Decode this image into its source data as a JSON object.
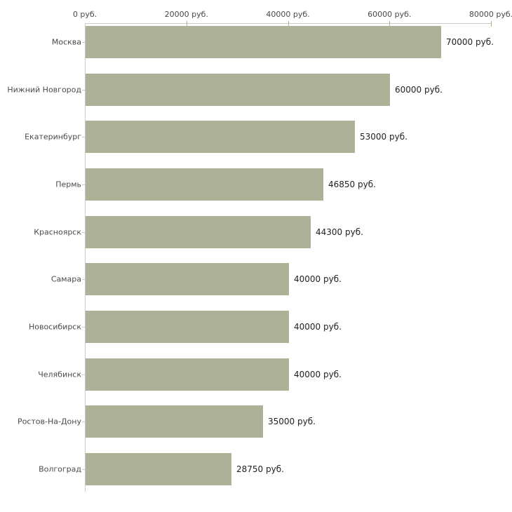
{
  "chart_data": {
    "type": "bar",
    "orientation": "horizontal",
    "title": "",
    "xlabel": "",
    "ylabel": "",
    "categories": [
      "Москва",
      "Нижний Новгород",
      "Екатеринбург",
      "Пермь",
      "Красноярск",
      "Самара",
      "Новосибирск",
      "Челябинск",
      "Ростов-На-Дону",
      "Волгоград"
    ],
    "values": [
      70000,
      60000,
      53000,
      46850,
      44300,
      40000,
      40000,
      40000,
      35000,
      28750
    ],
    "value_labels": [
      "70000 руб.",
      "60000 руб.",
      "53000 руб.",
      "46850 руб.",
      "44300 руб.",
      "40000 руб.",
      "40000 руб.",
      "40000 руб.",
      "35000 руб.",
      "28750 руб."
    ],
    "x_axis": {
      "position": "top",
      "min": 0,
      "max": 80000,
      "ticks": [
        0,
        20000,
        40000,
        60000,
        80000
      ],
      "tick_labels": [
        "0 руб.",
        "20000 руб.",
        "40000 руб.",
        "60000 руб.",
        "80000 руб."
      ]
    },
    "grid": "off",
    "legend": "none",
    "colors": {
      "bar": "#ADB197",
      "axis_line": "#C9C9C9",
      "tick_mark": "#B3B380",
      "category_text": "#4A4A4A",
      "tick_label_text": "#4A4A4A",
      "value_text": "#1F1F1F",
      "background": "#FFFFFF"
    }
  }
}
